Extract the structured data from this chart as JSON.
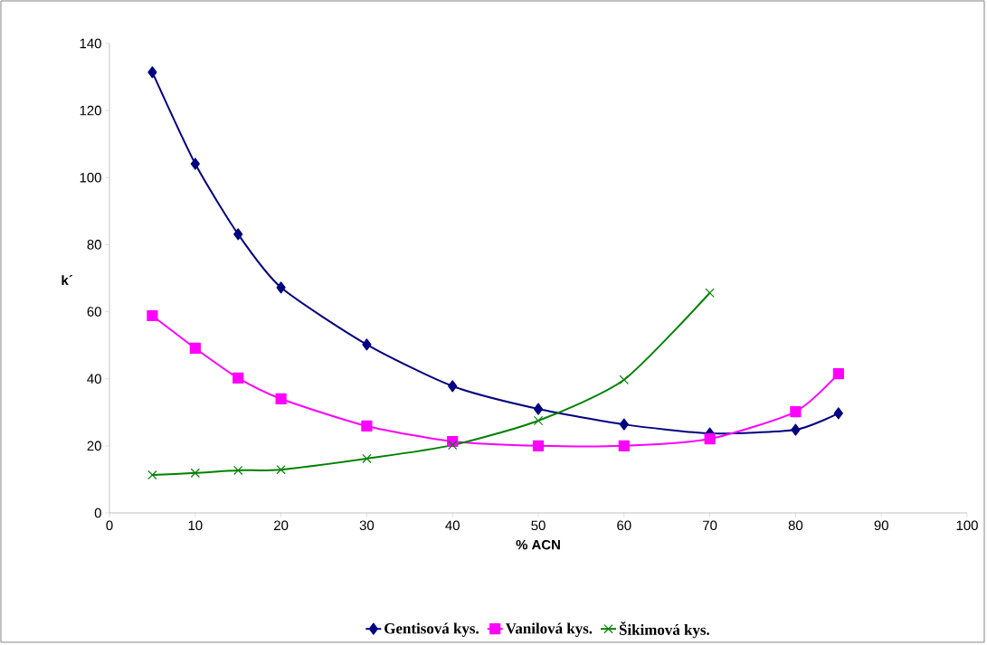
{
  "chart_data": {
    "type": "line",
    "xlabel": "% ACN",
    "ylabel": "k´",
    "x": [
      5,
      10,
      15,
      20,
      30,
      40,
      50,
      60,
      70,
      80,
      85
    ],
    "series": [
      {
        "name": "Gentisová kys.",
        "color": "#000080",
        "marker": "diamond",
        "values": [
          131.4,
          104.1,
          83.1,
          67.2,
          50.2,
          37.8,
          31.0,
          26.4,
          23.7,
          24.8,
          29.7
        ]
      },
      {
        "name": "Vanilová kys.",
        "color": "#ff00ff",
        "marker": "square",
        "values": [
          58.8,
          49.1,
          40.2,
          34.0,
          25.9,
          21.3,
          20.0,
          20.0,
          22.1,
          30.2,
          41.5
        ]
      },
      {
        "name": "Šikimová kys.",
        "color": "#008000",
        "marker": "cross",
        "values": [
          11.3,
          11.9,
          12.7,
          12.9,
          16.2,
          20.2,
          27.5,
          39.7,
          65.6,
          null,
          null
        ]
      }
    ],
    "xlim": [
      0,
      100
    ],
    "xticks": [
      0,
      10,
      20,
      30,
      40,
      50,
      60,
      70,
      80,
      90,
      100
    ],
    "ylim": [
      0,
      140
    ],
    "yticks": [
      0,
      20,
      40,
      60,
      80,
      100,
      120,
      140
    ],
    "grid": false,
    "legend": "bottom",
    "line_style": "solid"
  }
}
